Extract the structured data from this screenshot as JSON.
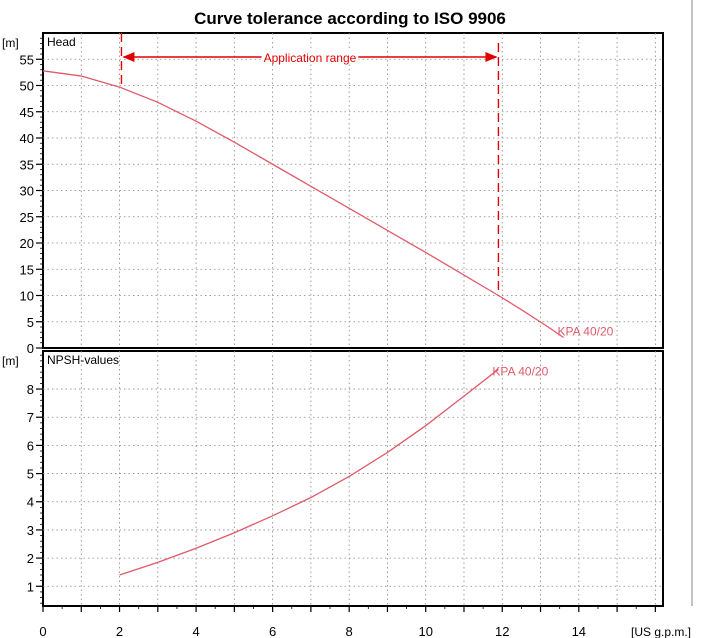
{
  "chart_data": {
    "type": "line",
    "title": "Curve tolerance according to ISO 9906",
    "x_unit": "[US g.p.m.]",
    "x_ticks": [
      0,
      2,
      4,
      6,
      8,
      10,
      12,
      14
    ],
    "xlim": [
      0,
      16.2
    ],
    "colors": {
      "curve": "#e05a6a",
      "range": "#e00000",
      "grid": "#888888"
    },
    "panels": [
      {
        "label": "Head",
        "unit": "[m]",
        "ylim": [
          0,
          60
        ],
        "y_ticks": [
          0,
          5,
          10,
          15,
          20,
          25,
          30,
          35,
          40,
          45,
          50,
          55
        ],
        "series": [
          {
            "name": "KPA 40/20",
            "x": [
              0,
              1,
              2,
              3,
              4,
              5,
              6,
              7,
              8,
              9,
              10,
              11,
              11.9,
              12.5,
              13.2,
              13.6
            ],
            "y": [
              52.8,
              51.8,
              49.7,
              46.8,
              43.2,
              39.2,
              35.0,
              30.8,
              26.6,
              22.4,
              18.2,
              13.9,
              10.0,
              7.3,
              4.0,
              2.0
            ]
          }
        ],
        "annotation": {
          "label": "Application range",
          "x_start": 2.05,
          "x_end": 11.9
        }
      },
      {
        "label": "NPSH-values",
        "unit": "[m]",
        "ylim": [
          0.3,
          9.35
        ],
        "y_ticks": [
          1,
          2,
          3,
          4,
          5,
          6,
          7,
          8
        ],
        "series": [
          {
            "name": "KPA 40/20",
            "x": [
              2.0,
              3,
              4,
              5,
              6,
              7,
              8,
              9,
              10,
              11,
              11.9
            ],
            "y": [
              1.4,
              1.85,
              2.35,
              2.9,
              3.5,
              4.15,
              4.9,
              5.75,
              6.7,
              7.75,
              8.7
            ]
          }
        ]
      }
    ]
  }
}
